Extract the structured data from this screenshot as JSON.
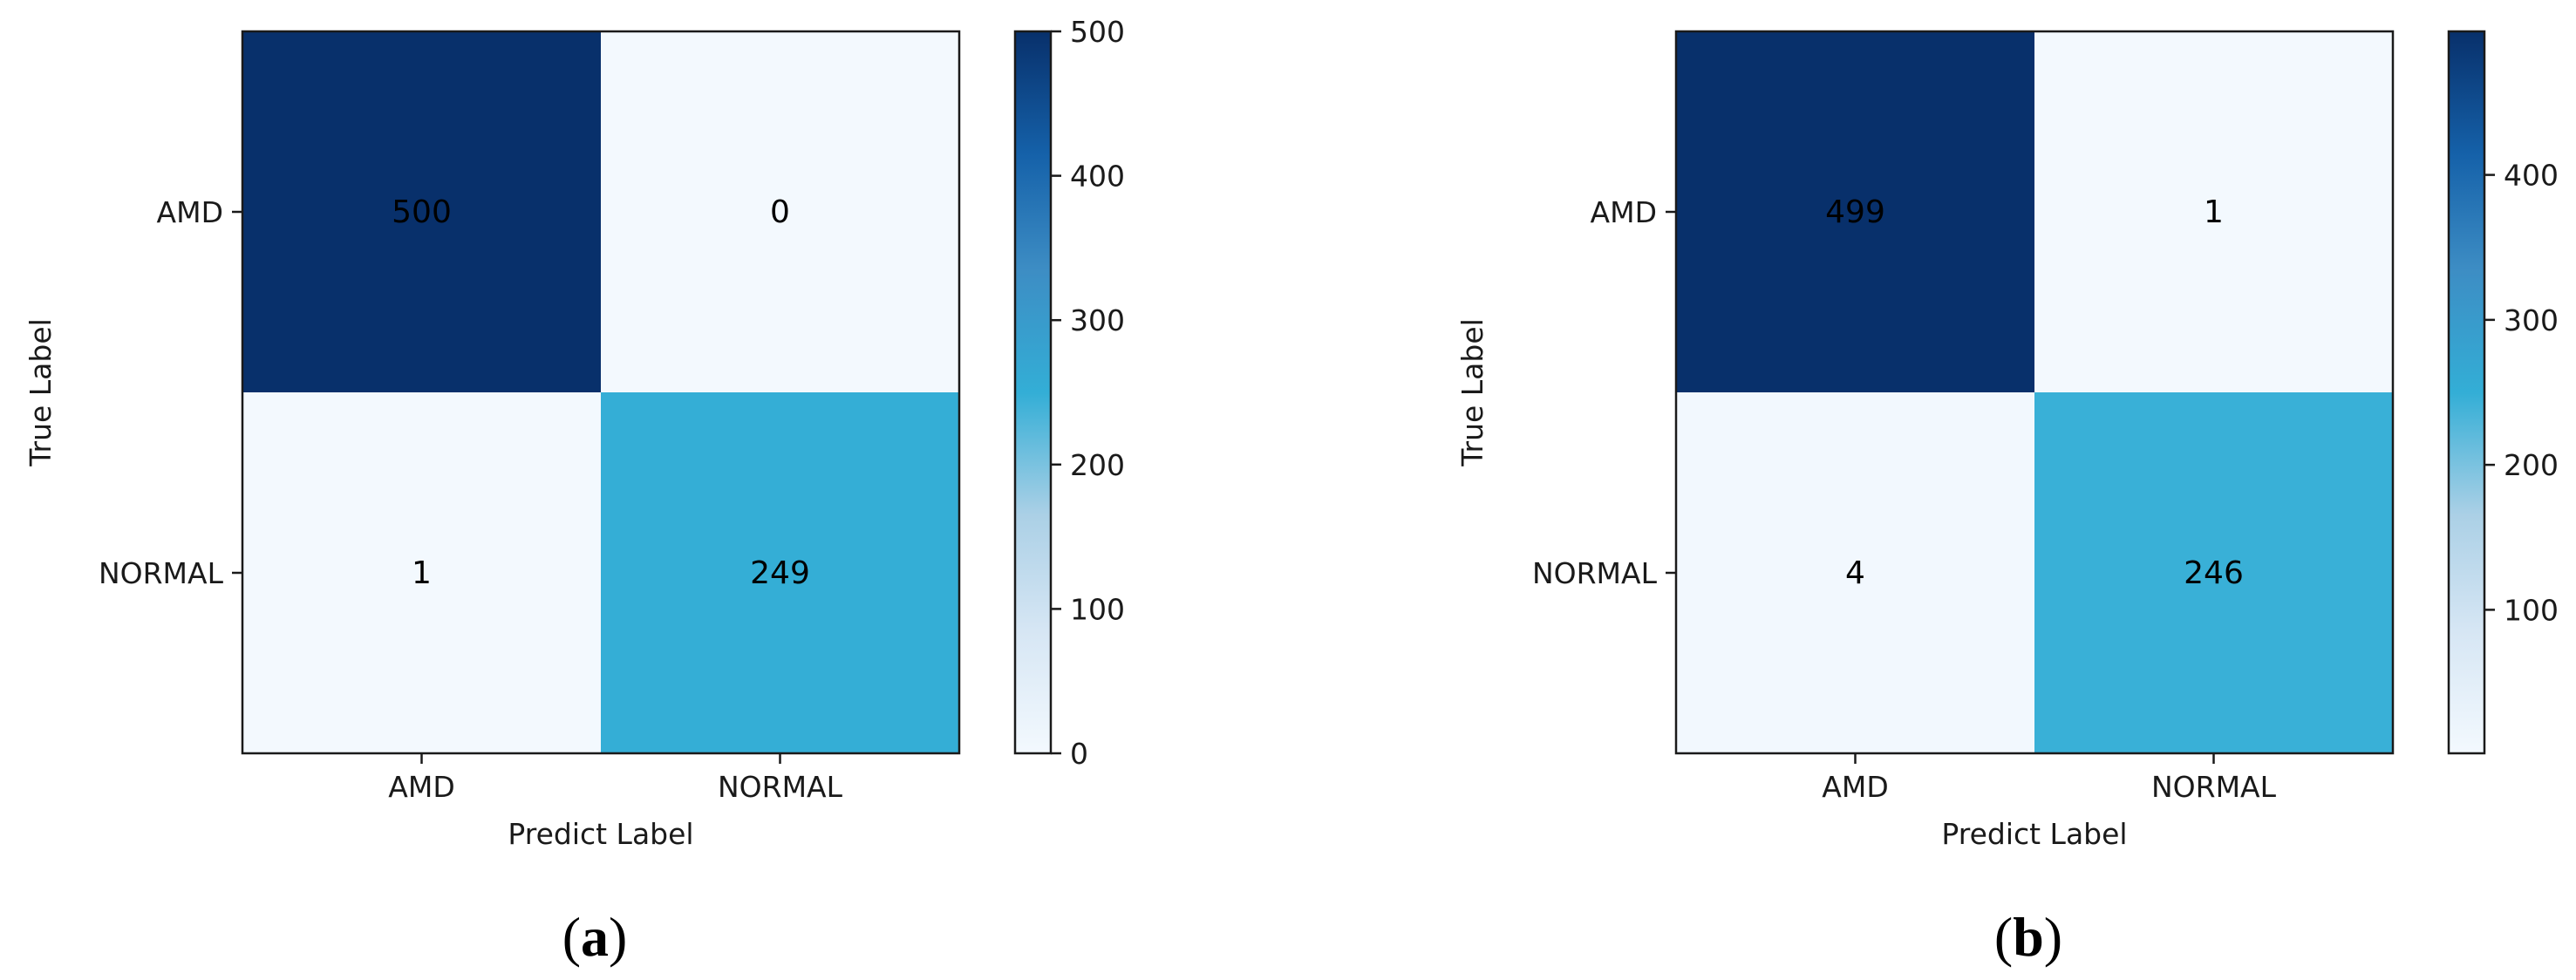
{
  "figure": {
    "panels": [
      {
        "label_open": "(",
        "label_letter": "a",
        "label_close": ")"
      },
      {
        "label_open": "(",
        "label_letter": "b",
        "label_close": ")"
      }
    ]
  },
  "colors": {
    "low": "#f3f9fe",
    "q1": "#d6e6f4",
    "q2": "#abd0e6",
    "q3": "#6aaed6",
    "q4": "#3d8dc4",
    "q5": "#1561a9",
    "high": "#08306b",
    "cell_mid": "#33aed6"
  },
  "chart_data": [
    {
      "type": "heatmap",
      "title": "",
      "xlabel": "Predict Label",
      "ylabel": "True Label",
      "x_categories": [
        "AMD",
        "NORMAL"
      ],
      "y_categories": [
        "AMD",
        "NORMAL"
      ],
      "values": [
        [
          500,
          0
        ],
        [
          1,
          249
        ]
      ],
      "cell_labels": [
        [
          "500",
          "0"
        ],
        [
          "1",
          "249"
        ]
      ],
      "colorbar": {
        "range": [
          0,
          500
        ],
        "ticks": [
          0,
          100,
          200,
          300,
          400,
          500
        ],
        "tick_labels": [
          "0",
          "100",
          "200",
          "300",
          "400",
          "500"
        ]
      }
    },
    {
      "type": "heatmap",
      "title": "",
      "xlabel": "Predict Label",
      "ylabel": "True Label",
      "x_categories": [
        "AMD",
        "NORMAL"
      ],
      "y_categories": [
        "AMD",
        "NORMAL"
      ],
      "values": [
        [
          499,
          1
        ],
        [
          4,
          246
        ]
      ],
      "cell_labels": [
        [
          "499",
          "1"
        ],
        [
          "4",
          "246"
        ]
      ],
      "colorbar": {
        "range": [
          1,
          499
        ],
        "ticks": [
          100,
          200,
          300,
          400
        ],
        "tick_labels": [
          "100",
          "200",
          "300",
          "400"
        ]
      }
    }
  ]
}
